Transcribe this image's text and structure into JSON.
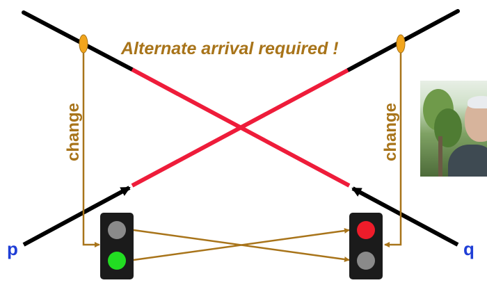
{
  "title": "Alternate arrival required !",
  "left_label": "change",
  "right_label": "change",
  "left_track_label": "p",
  "right_track_label": "q",
  "colors": {
    "track": "#000000",
    "critical_section": "#ee1c3a",
    "signal_wire": "#a8741a",
    "sensor": "#f2a51c",
    "label_text": "#a8741a",
    "track_label": "#1f3ed6",
    "signal_box": "#1b1b1b",
    "lamp_green": "#22dd22",
    "lamp_red": "#ee1c2a",
    "lamp_off": "#8a8a8a"
  },
  "signals": {
    "left": {
      "top_lamp": "off",
      "bottom_lamp": "green"
    },
    "right": {
      "top_lamp": "red",
      "bottom_lamp": "off"
    }
  },
  "photo_icon": "person-photo"
}
